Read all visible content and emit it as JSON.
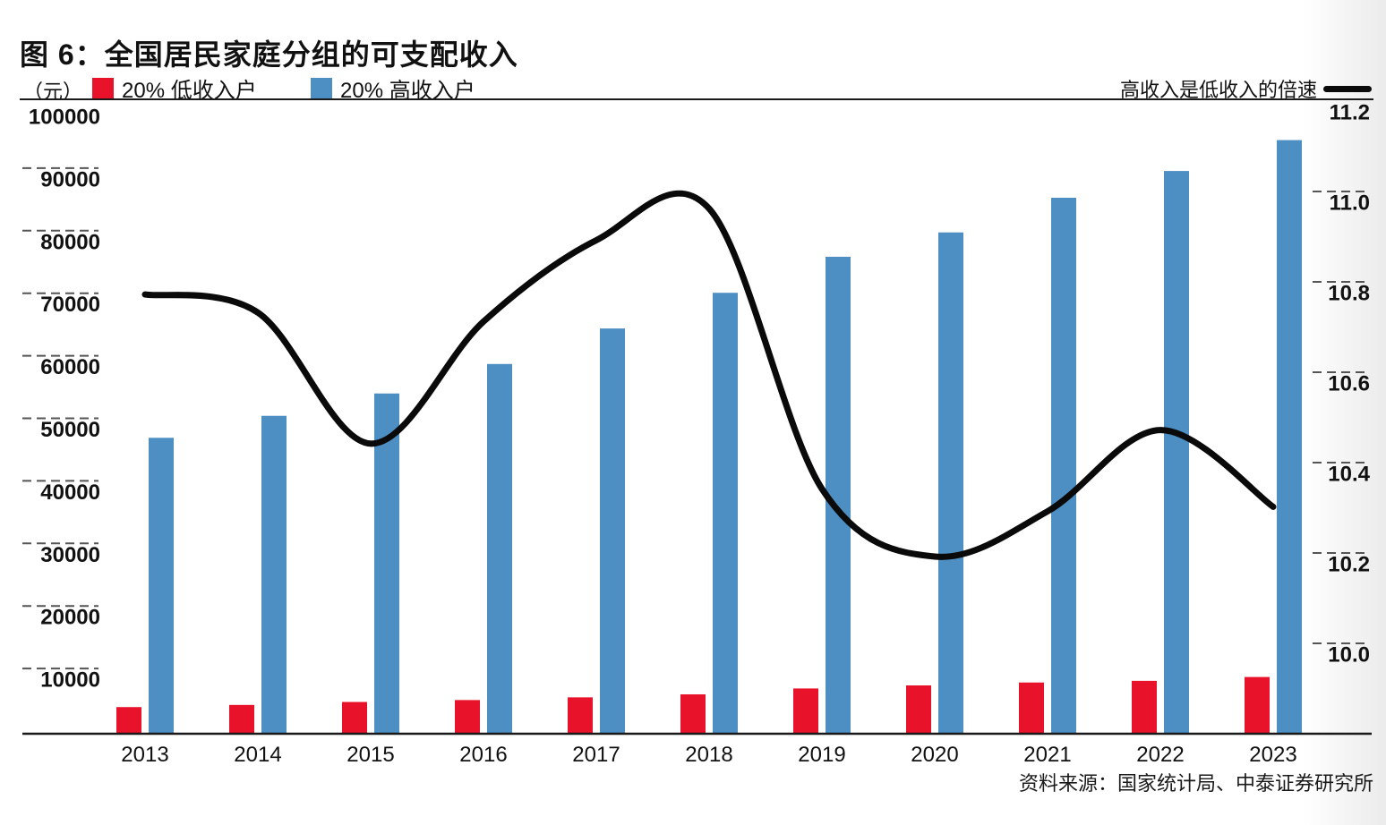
{
  "title": "图 6：全国居民家庭分组的可支配收入",
  "unit_label": "（元）",
  "legend": {
    "low": "20% 低收入户",
    "high": "20% 高收入户",
    "ratio": "高收入是低收入的倍速"
  },
  "source": "资料来源：国家统计局、中泰证券研究所",
  "colors": {
    "low": "#e8132b",
    "high": "#4d8ec3",
    "ratio": "#0a0a0a",
    "axis": "#1a1a1a",
    "tick_dash": "#555555"
  },
  "chart_data": {
    "type": "bar",
    "title": "图 6：全国居民家庭分组的可支配收入",
    "categories": [
      "2013",
      "2014",
      "2015",
      "2016",
      "2017",
      "2018",
      "2019",
      "2020",
      "2021",
      "2022",
      "2023"
    ],
    "series": [
      {
        "name": "20% 低收入户",
        "type": "bar",
        "axis": "left",
        "color": "#e8132b",
        "values": [
          4402,
          4747,
          5221,
          5529,
          5958,
          6440,
          7380,
          7869,
          8333,
          8601,
          9215
        ]
      },
      {
        "name": "20% 高收入户",
        "type": "bar",
        "axis": "left",
        "color": "#4d8ec3",
        "values": [
          47457,
          50968,
          54544,
          59259,
          64934,
          70640,
          76401,
          80294,
          85836,
          90116,
          95055
        ]
      },
      {
        "name": "高收入是低收入的倍速",
        "type": "line",
        "axis": "right",
        "color": "#0a0a0a",
        "values": [
          10.78,
          10.74,
          10.45,
          10.72,
          10.9,
          10.97,
          10.35,
          10.2,
          10.3,
          10.48,
          10.31
        ]
      }
    ],
    "left_axis": {
      "unit": "（元）",
      "range": [
        0,
        100000
      ],
      "ticks": [
        10000,
        20000,
        30000,
        40000,
        50000,
        60000,
        70000,
        80000,
        90000,
        100000
      ]
    },
    "right_axis": {
      "range": [
        9.8,
        11.2
      ],
      "ticks": [
        10.0,
        10.2,
        10.4,
        10.6,
        10.8,
        11.0,
        11.2
      ]
    },
    "grid": "tick-stubs-only",
    "legend_position": "top"
  }
}
